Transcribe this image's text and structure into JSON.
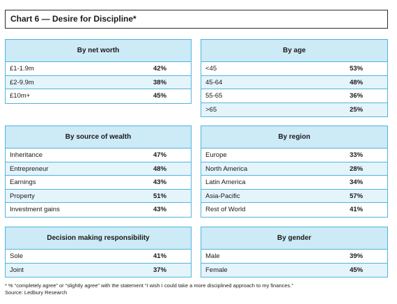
{
  "title": "Chart 6 — Desire for Discipline*",
  "panels": [
    {
      "key": "net_worth",
      "header": "By net worth",
      "rows": [
        {
          "label": "£1-1.9m",
          "value": "42%"
        },
        {
          "label": "£2-9.9m",
          "value": "38%"
        },
        {
          "label": "£10m+",
          "value": "45%"
        }
      ]
    },
    {
      "key": "age",
      "header": "By age",
      "rows": [
        {
          "label": "<45",
          "value": "53%"
        },
        {
          "label": "45-64",
          "value": "48%"
        },
        {
          "label": "55-65",
          "value": "36%"
        },
        {
          "label": ">65",
          "value": "25%"
        }
      ]
    },
    {
      "key": "source",
      "header": "By source of wealth",
      "rows": [
        {
          "label": "Inheritance",
          "value": "47%"
        },
        {
          "label": "Entrepreneur",
          "value": "48%"
        },
        {
          "label": "Earnings",
          "value": "43%"
        },
        {
          "label": "Property",
          "value": "51%"
        },
        {
          "label": "Investment gains",
          "value": "43%"
        }
      ]
    },
    {
      "key": "region",
      "header": "By region",
      "rows": [
        {
          "label": "Europe",
          "value": "33%"
        },
        {
          "label": "North America",
          "value": "28%"
        },
        {
          "label": "Latin America",
          "value": "34%"
        },
        {
          "label": "Asia-Pacific",
          "value": "57%"
        },
        {
          "label": "Rest of World",
          "value": "41%"
        }
      ]
    },
    {
      "key": "decision",
      "header": "Decision making responsibility",
      "rows": [
        {
          "label": "Sole",
          "value": "41%"
        },
        {
          "label": "Joint",
          "value": "37%"
        }
      ]
    },
    {
      "key": "gender",
      "header": "By gender",
      "rows": [
        {
          "label": "Male",
          "value": "39%"
        },
        {
          "label": "Female",
          "value": "45%"
        }
      ]
    }
  ],
  "footnote": "* % “completely agree” or “slightly agree” with the statement “I wish I could take a more disciplined approach to my finances.”",
  "source": "Source: Ledbury Research",
  "chart_data": {
    "type": "table",
    "title": "Chart 6 — Desire for Discipline*",
    "tables": [
      {
        "name": "By net worth",
        "categories": [
          "£1-1.9m",
          "£2-9.9m",
          "£10m+"
        ],
        "values": [
          42,
          38,
          45
        ]
      },
      {
        "name": "By age",
        "categories": [
          "<45",
          "45-64",
          "55-65",
          ">65"
        ],
        "values": [
          53,
          48,
          36,
          25
        ]
      },
      {
        "name": "By source of wealth",
        "categories": [
          "Inheritance",
          "Entrepreneur",
          "Earnings",
          "Property",
          "Investment gains"
        ],
        "values": [
          47,
          48,
          43,
          51,
          43
        ]
      },
      {
        "name": "By region",
        "categories": [
          "Europe",
          "North America",
          "Latin America",
          "Asia-Pacific",
          "Rest of World"
        ],
        "values": [
          33,
          28,
          34,
          57,
          41
        ]
      },
      {
        "name": "Decision making responsibility",
        "categories": [
          "Sole",
          "Joint"
        ],
        "values": [
          41,
          37
        ]
      },
      {
        "name": "By gender",
        "categories": [
          "Male",
          "Female"
        ],
        "values": [
          39,
          45
        ]
      }
    ]
  }
}
